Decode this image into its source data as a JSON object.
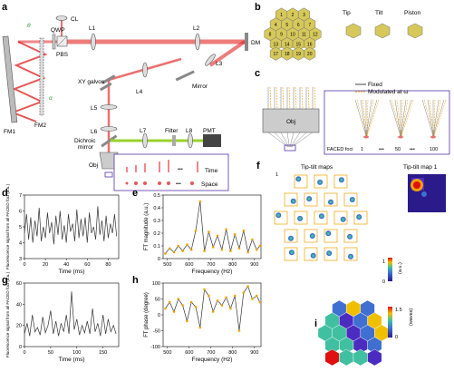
{
  "panel_labels": {
    "a": "a",
    "b": "b",
    "c": "c",
    "d": "d",
    "e": "e",
    "f": "f",
    "g": "g",
    "h": "h",
    "i": "i"
  },
  "optics": {
    "theta1": "θ",
    "theta2": "α",
    "CL": "CL",
    "QWP": "QWP",
    "PBS": "PBS",
    "L1": "L1",
    "L2": "L2",
    "DM": "DM",
    "L3": "L3",
    "mirror": "Mirror",
    "xy_galvos": "XY galvos",
    "L4": "L4",
    "L5": "L5",
    "L6": "L6",
    "dichroic": "Dichroic",
    "dichroic2": "mirror",
    "L7": "L7",
    "filter": "Filter",
    "L8": "L8",
    "PMT": "PMT",
    "obj": "Obj",
    "FM1": "FM1",
    "FM2": "FM2",
    "time": "Time",
    "space": "Space",
    "dots": "•••"
  },
  "dm_panel": {
    "segments": [
      "1",
      "2",
      "3",
      "4",
      "5",
      "6",
      "7",
      "8",
      "9",
      "10",
      "11",
      "12",
      "13",
      "14",
      "15",
      "16",
      "17",
      "18",
      "19",
      "20"
    ],
    "tip": "Tip",
    "tilt": "Tilt",
    "piston": "Piston"
  },
  "panel_c": {
    "fixed": "Fixed",
    "modulated": "Modulated at ω",
    "modulated_sub": "i",
    "obj": "Obj",
    "foci_label": "FACED foci",
    "foci_1": "1",
    "foci_50": "50",
    "foci_100": "100",
    "dots": "•••"
  },
  "panel_f": {
    "title": "Tip-tilt maps",
    "map1_title": "Tip-tilt map 1",
    "cb_max": "1",
    "cb_min": "0",
    "cb_unit": "(a.u.)",
    "index1": "1"
  },
  "panel_i": {
    "cb_max": "1.5",
    "cb_min": "0",
    "cb_unit": "(waves)"
  },
  "chart_data": [
    {
      "panel": "d",
      "type": "line",
      "xlabel": "Time (ms)",
      "ylabel": "Fluorescence signal from all FACED foci (a.u.)",
      "xlim": [
        0,
        90
      ],
      "ylim": [
        3,
        7
      ],
      "xticks": [
        "0",
        "20",
        "40",
        "60",
        "80"
      ],
      "yticks": [
        "3",
        "4",
        "5",
        "6",
        "7"
      ],
      "x": [
        0,
        2,
        4,
        6,
        8,
        10,
        12,
        14,
        16,
        18,
        20,
        22,
        24,
        26,
        28,
        30,
        32,
        34,
        36,
        38,
        40,
        42,
        44,
        46,
        48,
        50,
        52,
        54,
        56,
        58,
        60,
        62,
        64,
        66,
        68,
        70,
        72,
        74,
        76,
        78,
        80,
        82,
        84,
        86,
        88
      ],
      "values": [
        4.6,
        5.8,
        4.2,
        5.6,
        4.0,
        5.4,
        4.4,
        6.2,
        4.1,
        5.0,
        4.3,
        5.9,
        4.6,
        5.3,
        3.9,
        5.7,
        4.5,
        6.0,
        4.2,
        5.1,
        4.0,
        5.8,
        4.7,
        5.2,
        4.1,
        6.1,
        4.3,
        5.5,
        4.4,
        5.6,
        4.0,
        5.9,
        4.6,
        5.0,
        4.2,
        6.3,
        4.5,
        5.4,
        4.1,
        5.7,
        4.3,
        5.2,
        4.6,
        5.8,
        4.4
      ]
    },
    {
      "panel": "e",
      "type": "line",
      "xlabel": "Frequency (Hz)",
      "ylabel": "FT magnitude (a.u.)",
      "xlim": [
        480,
        930
      ],
      "ylim": [
        0,
        0.5
      ],
      "xticks": [
        "500",
        "600",
        "700",
        "800",
        "900"
      ],
      "yticks": [
        "0",
        "0.1",
        "0.2",
        "0.3",
        "0.4",
        "0.5"
      ],
      "x": [
        490,
        510,
        530,
        550,
        570,
        590,
        610,
        630,
        650,
        670,
        690,
        710,
        730,
        750,
        770,
        790,
        810,
        830,
        850,
        870,
        890,
        910,
        925
      ],
      "values": [
        0.04,
        0.08,
        0.05,
        0.1,
        0.06,
        0.11,
        0.07,
        0.22,
        0.45,
        0.06,
        0.21,
        0.09,
        0.18,
        0.07,
        0.23,
        0.06,
        0.19,
        0.08,
        0.22,
        0.05,
        0.15,
        0.07,
        0.1
      ]
    },
    {
      "panel": "g",
      "type": "line",
      "xlabel": "Time (ms)",
      "ylabel": "Fluorescence signal from all FACED foci (a.u.)",
      "xlim": [
        0,
        180
      ],
      "ylim": [
        0,
        60
      ],
      "xticks": [
        "0",
        "50",
        "100",
        "150"
      ],
      "yticks": [
        "0",
        "20",
        "40",
        "60"
      ],
      "x": [
        0,
        5,
        10,
        15,
        20,
        25,
        30,
        35,
        40,
        45,
        50,
        55,
        60,
        65,
        70,
        75,
        80,
        85,
        90,
        95,
        100,
        105,
        110,
        115,
        120,
        125,
        130,
        135,
        140,
        145,
        150,
        155,
        160,
        165,
        170,
        175
      ],
      "values": [
        12,
        22,
        10,
        30,
        14,
        18,
        11,
        28,
        13,
        20,
        34,
        12,
        24,
        10,
        22,
        14,
        30,
        12,
        52,
        16,
        26,
        11,
        20,
        13,
        24,
        12,
        36,
        14,
        22,
        10,
        30,
        12,
        26,
        14,
        20,
        12
      ]
    },
    {
      "panel": "h",
      "type": "line",
      "xlabel": "Frequency (Hz)",
      "ylabel": "FT phase (degree)",
      "xlim": [
        480,
        930
      ],
      "ylim": [
        -100,
        100
      ],
      "xticks": [
        "500",
        "600",
        "700",
        "800",
        "900"
      ],
      "yticks": [
        "-100",
        "-50",
        "0",
        "50",
        "100"
      ],
      "x": [
        490,
        510,
        530,
        550,
        570,
        590,
        610,
        630,
        650,
        670,
        690,
        710,
        730,
        750,
        770,
        790,
        810,
        830,
        850,
        870,
        890,
        910,
        925
      ],
      "values": [
        20,
        40,
        10,
        50,
        30,
        -20,
        40,
        25,
        -40,
        80,
        60,
        10,
        45,
        30,
        55,
        20,
        60,
        -50,
        70,
        90,
        50,
        60,
        40
      ]
    }
  ],
  "colors": {
    "laser": "#e01010",
    "modulated": "#f0a000",
    "fluor": "#9bd12e",
    "panel_box": "#5533aa",
    "segment": "#d6c85a"
  }
}
